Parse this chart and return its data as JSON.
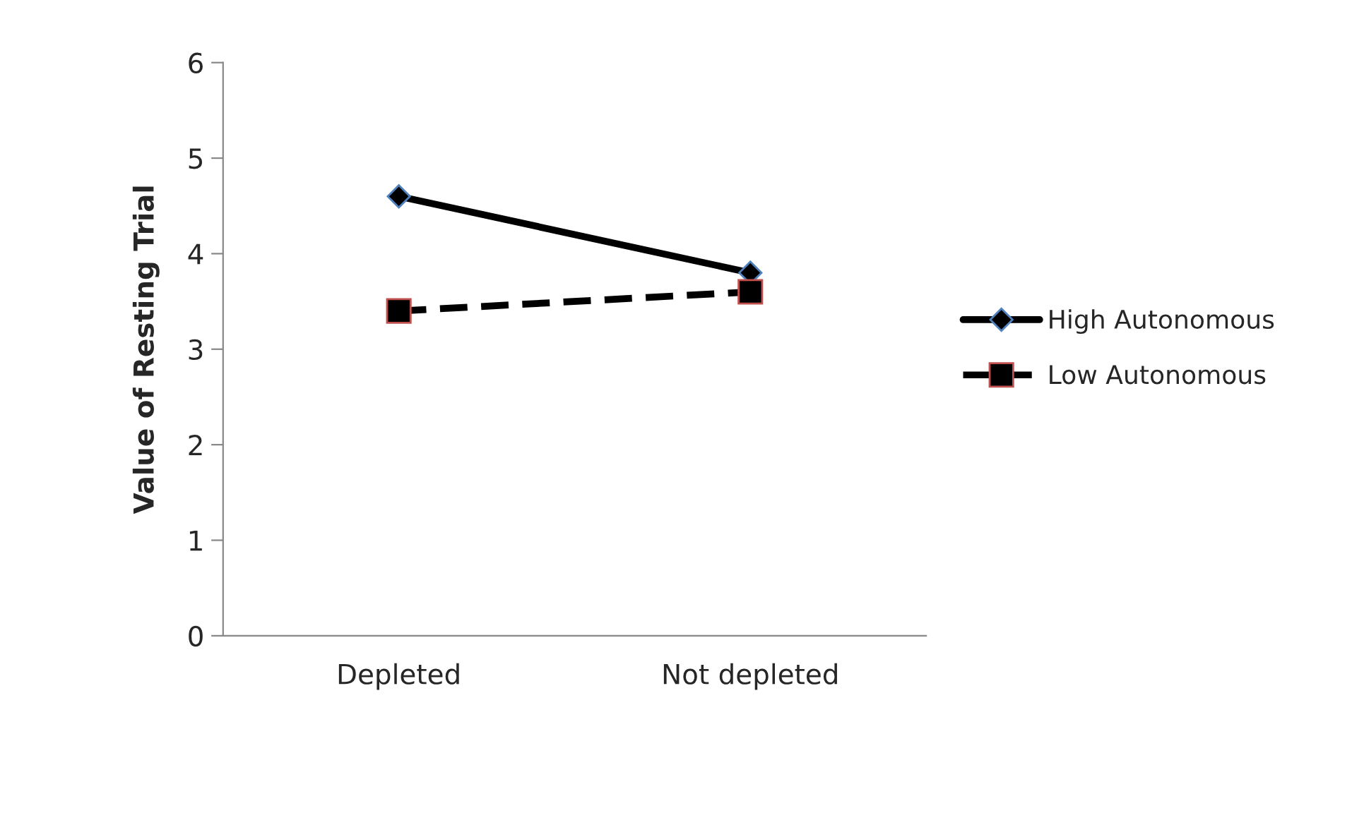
{
  "chart_data": {
    "type": "line",
    "ylabel": "Value of Resting Trial",
    "categories": [
      "Depleted",
      "Not depleted"
    ],
    "series": [
      {
        "name": "High Autonomous",
        "color": "#000000",
        "values": [
          4.6,
          3.8
        ],
        "marker": "diamond",
        "line_style": "solid"
      },
      {
        "name": "Low Autonomous",
        "color": "#000000",
        "values": [
          3.4,
          3.6
        ],
        "marker": "square",
        "line_style": "dashed"
      }
    ],
    "ylim": [
      0,
      6
    ],
    "yticks": [
      0,
      1,
      2,
      3,
      4,
      5,
      6
    ],
    "grid": false,
    "legend": "right"
  }
}
